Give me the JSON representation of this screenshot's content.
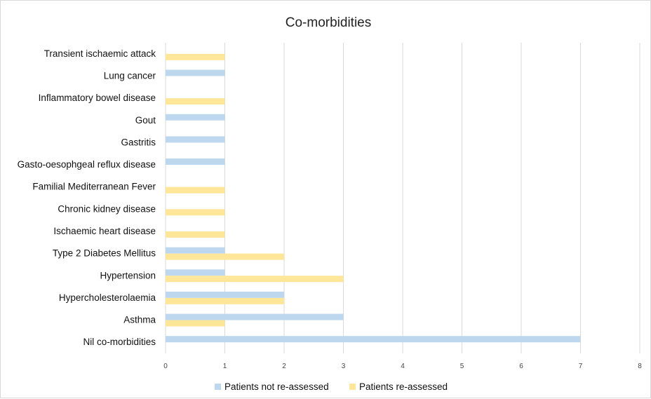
{
  "chart_data": {
    "type": "bar",
    "orientation": "horizontal",
    "title": "Co-morbidities",
    "xlabel": "",
    "ylabel": "",
    "xlim": [
      0,
      8
    ],
    "ticks": [
      0,
      1,
      2,
      3,
      4,
      5,
      6,
      7,
      8
    ],
    "grid": "vertical",
    "legend_position": "bottom",
    "categories": [
      "Transient ischaemic attack",
      "Lung cancer",
      "Inflammatory bowel disease",
      "Gout",
      "Gastritis",
      "Gasto-oesophgeal reflux disease",
      "Familial Mediterranean Fever",
      "Chronic kidney disease",
      "Ischaemic heart disease",
      "Type 2 Diabetes Mellitus",
      "Hypertension",
      "Hypercholesterolaemia",
      "Asthma",
      "Nil co-morbidities"
    ],
    "series": [
      {
        "name": "Patients not re-assessed",
        "color": "#bdd7ee",
        "values": [
          0,
          1,
          0,
          1,
          1,
          1,
          0,
          0,
          0,
          1,
          1,
          2,
          3,
          7
        ]
      },
      {
        "name": "Patients re-assessed",
        "color": "#ffe699",
        "values": [
          1,
          0,
          1,
          0,
          0,
          0,
          1,
          1,
          1,
          2,
          3,
          2,
          1,
          0
        ]
      }
    ]
  }
}
